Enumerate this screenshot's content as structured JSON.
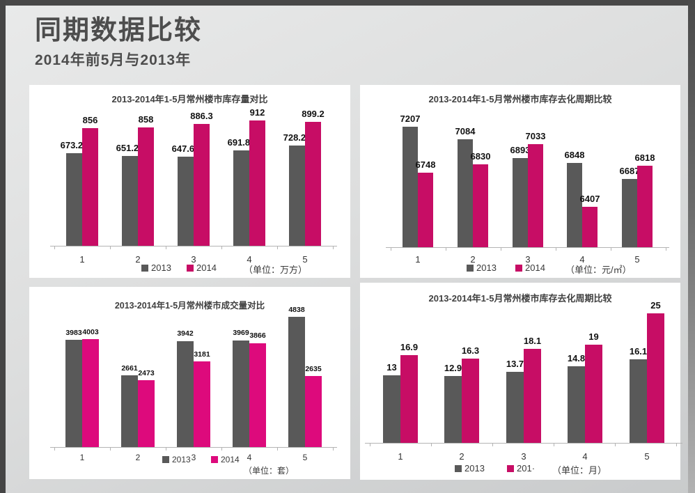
{
  "header": {
    "title": "同期数据比较",
    "subtitle": "2014年前5月与2013年"
  },
  "colors": {
    "frame": "#484848",
    "panel": "#ffffff",
    "bar_2013": "#595959",
    "bar_2014": "#C70D65",
    "bar_2014_bright": "#DD0A7C",
    "header_text": "#4d4d4d"
  },
  "chart_data": [
    {
      "type": "bar",
      "title": "2013-2014年1-5月常州楼市库存量对比",
      "categories": [
        "1",
        "2",
        "3",
        "4",
        "5"
      ],
      "series": [
        {
          "name": "2013",
          "legend_label": "2013",
          "color": "#595959",
          "values": [
            673.23,
            651.23,
            647.62,
            691.89,
            728.26
          ]
        },
        {
          "name": "2014",
          "legend_label": "2014",
          "color": "#C70D65",
          "values": [
            856,
            858,
            886.3,
            912,
            899.2
          ]
        }
      ],
      "unit_label": "（单位：万方）",
      "ylim": [
        0,
        950
      ],
      "grid": false,
      "legend_position": "bottom"
    },
    {
      "type": "bar",
      "title": "2013-2014年1-5月常州楼市库存去化周期比较",
      "categories": [
        "1",
        "2",
        "3",
        "4",
        "5"
      ],
      "series": [
        {
          "name": "2013",
          "legend_label": "2013",
          "color": "#595959",
          "values": [
            7207,
            7084,
            6893,
            6848,
            6687
          ]
        },
        {
          "name": "2014",
          "legend_label": "2014",
          "color": "#C70D65",
          "values": [
            6748,
            6830,
            7033,
            6407,
            6818
          ]
        }
      ],
      "unit_label": "（单位：元/㎡）",
      "ylim": [
        6000,
        7300
      ],
      "grid": false,
      "legend_position": "bottom"
    },
    {
      "type": "bar",
      "title": "2013-2014年1-5月常州楼市成交量对比",
      "categories": [
        "1",
        "2",
        "3",
        "4",
        "5"
      ],
      "series": [
        {
          "name": "2013",
          "legend_label": "2013",
          "color": "#595959",
          "values": [
            3983,
            2661,
            3942,
            3969,
            4838
          ]
        },
        {
          "name": "2014",
          "legend_label": "2014",
          "color": "#DD0A7C",
          "values": [
            4003,
            2473,
            3181,
            3866,
            2635
          ]
        }
      ],
      "unit_label": "（单位：套）",
      "ylim": [
        0,
        5100
      ],
      "grid": false,
      "legend_position": "bottom"
    },
    {
      "type": "bar",
      "title": "2013-2014年1-5月常州楼市库存去化周期比较",
      "categories": [
        "1",
        "2",
        "3",
        "4",
        "5"
      ],
      "series": [
        {
          "name": "2013",
          "legend_label": "2013",
          "color": "#595959",
          "values": [
            13,
            12.9,
            13.7,
            14.8,
            16.1
          ]
        },
        {
          "name": "2014",
          "legend_label": "201·",
          "color": "#C70D65",
          "values": [
            16.9,
            16.3,
            18.1,
            19,
            25
          ]
        }
      ],
      "unit_label": "（单位：月）",
      "ylim": [
        0,
        26.5
      ],
      "grid": false,
      "legend_position": "bottom"
    }
  ]
}
